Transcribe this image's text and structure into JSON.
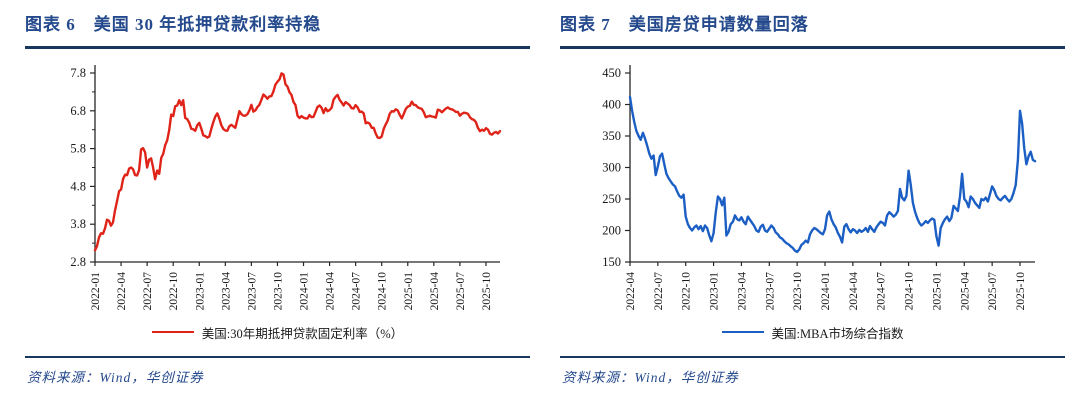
{
  "colors": {
    "title_navy": "#24498c",
    "rule_navy": "#17375e",
    "red_line": "#e02318",
    "blue_line": "#1c5fc4",
    "axis": "#262626"
  },
  "panels": [
    {
      "title": "图表 6　美国 30 年抵押贷款利率持稳",
      "legend": "美国:30年期抵押贷款固定利率（%）",
      "source": "资料来源：Wind，华创证券"
    },
    {
      "title": "图表 7　美国房贷申请数量回落",
      "legend": "美国:MBA市场综合指数",
      "source": "资料来源：Wind，华创证券"
    }
  ],
  "chart_data": [
    {
      "type": "line",
      "title": "美国 30 年抵押贷款利率持稳",
      "xlabel": "",
      "ylabel": "",
      "x_start": "2022-01",
      "frequency": "weekly",
      "ylim": [
        2.8,
        7.8
      ],
      "yticks": [
        2.8,
        3.8,
        4.8,
        5.8,
        6.8,
        7.8
      ],
      "ytick_labels": [
        "2.8",
        "3.8",
        "4.8",
        "5.8",
        "6.8",
        "7.8"
      ],
      "yminor_step": 0.5,
      "xtick_interval_weeks": 13,
      "xtick_labels": [
        "2022-01",
        "2022-04",
        "2022-07",
        "2022-10",
        "2023-01",
        "2023-04",
        "2023-07",
        "2023-10",
        "2024-01",
        "2024-04",
        "2024-07",
        "2024-10",
        "2025-01",
        "2025-04",
        "2025-07",
        "2025-10"
      ],
      "legend_position": "bottom",
      "grid": false,
      "series": [
        {
          "name": "美国:30年期抵押贷款固定利率（%）",
          "color": "#e02318",
          "values": [
            3.11,
            3.22,
            3.45,
            3.56,
            3.55,
            3.69,
            3.92,
            3.89,
            3.76,
            3.85,
            4.16,
            4.42,
            4.67,
            4.72,
            5.0,
            5.11,
            5.1,
            5.27,
            5.3,
            5.25,
            5.1,
            5.09,
            5.23,
            5.78,
            5.81,
            5.7,
            5.3,
            5.51,
            5.54,
            5.3,
            4.99,
            5.22,
            5.13,
            5.55,
            5.66,
            5.89,
            6.02,
            6.29,
            6.7,
            6.66,
            6.92,
            6.94,
            7.08,
            6.95,
            7.08,
            6.61,
            6.58,
            6.49,
            6.33,
            6.31,
            6.27,
            6.42,
            6.48,
            6.33,
            6.15,
            6.13,
            6.09,
            6.12,
            6.32,
            6.5,
            6.65,
            6.73,
            6.6,
            6.42,
            6.32,
            6.28,
            6.27,
            6.39,
            6.43,
            6.39,
            6.35,
            6.57,
            6.79,
            6.71,
            6.67,
            6.67,
            6.71,
            6.81,
            6.96,
            6.78,
            6.81,
            6.9,
            6.96,
            7.09,
            7.23,
            7.18,
            7.12,
            7.18,
            7.19,
            7.31,
            7.49,
            7.57,
            7.63,
            7.79,
            7.76,
            7.5,
            7.44,
            7.29,
            7.22,
            7.03,
            6.95,
            6.67,
            6.61,
            6.66,
            6.62,
            6.6,
            6.6,
            6.69,
            6.63,
            6.64,
            6.77,
            6.9,
            6.94,
            6.88,
            6.74,
            6.87,
            6.79,
            6.82,
            6.88,
            7.1,
            7.17,
            7.22,
            7.09,
            7.02,
            6.94,
            7.03,
            6.99,
            6.95,
            6.87,
            6.86,
            6.95,
            6.89,
            6.77,
            6.78,
            6.73,
            6.47,
            6.49,
            6.46,
            6.35,
            6.35,
            6.2,
            6.09,
            6.08,
            6.12,
            6.32,
            6.44,
            6.54,
            6.72,
            6.79,
            6.78,
            6.84,
            6.81,
            6.69,
            6.6,
            6.72,
            6.85,
            6.91,
            6.93,
            7.04,
            6.96,
            6.95,
            6.89,
            6.87,
            6.85,
            6.76,
            6.63,
            6.65,
            6.67,
            6.65,
            6.64,
            6.62,
            6.83,
            6.81,
            6.76,
            6.81,
            6.86,
            6.89,
            6.85,
            6.84,
            6.81,
            6.77,
            6.77,
            6.67,
            6.72,
            6.75,
            6.74,
            6.72,
            6.63,
            6.58,
            6.56,
            6.5,
            6.35,
            6.26,
            6.3,
            6.27,
            6.34,
            6.3,
            6.19,
            6.17,
            6.22,
            6.24,
            6.2,
            6.26
          ]
        }
      ]
    },
    {
      "type": "line",
      "title": "美国房贷申请数量回落",
      "xlabel": "",
      "ylabel": "",
      "x_start": "2022-04",
      "frequency": "weekly",
      "ylim": [
        150,
        450
      ],
      "yticks": [
        150,
        200,
        250,
        300,
        350,
        400,
        450
      ],
      "ytick_labels": [
        "150",
        "200",
        "250",
        "300",
        "350",
        "400",
        "450"
      ],
      "yminor_step": null,
      "xtick_interval_weeks": 13,
      "xtick_labels": [
        "2022-04",
        "2022-07",
        "2022-10",
        "2023-01",
        "2023-04",
        "2023-07",
        "2023-10",
        "2024-01",
        "2024-04",
        "2024-07",
        "2024-10",
        "2025-01",
        "2025-04",
        "2025-07",
        "2025-10"
      ],
      "legend_position": "bottom",
      "grid": false,
      "series": [
        {
          "name": "美国:MBA市场综合指数",
          "color": "#1c5fc4",
          "values": [
            412,
            390,
            372,
            358,
            350,
            344,
            355,
            346,
            335,
            322,
            314,
            319,
            288,
            302,
            318,
            322,
            305,
            290,
            283,
            278,
            273,
            270,
            262,
            255,
            252,
            257,
            222,
            210,
            204,
            200,
            205,
            208,
            202,
            207,
            199,
            208,
            204,
            192,
            183,
            196,
            228,
            254,
            250,
            240,
            252,
            192,
            198,
            210,
            214,
            224,
            218,
            216,
            221,
            214,
            210,
            222,
            217,
            212,
            207,
            200,
            198,
            206,
            209,
            200,
            198,
            203,
            208,
            204,
            197,
            194,
            189,
            187,
            183,
            180,
            178,
            175,
            172,
            168,
            166,
            170,
            177,
            180,
            184,
            181,
            194,
            200,
            204,
            202,
            199,
            196,
            194,
            202,
            224,
            230,
            218,
            210,
            205,
            196,
            190,
            181,
            206,
            210,
            202,
            197,
            202,
            200,
            196,
            201,
            198,
            200,
            204,
            198,
            207,
            202,
            198,
            205,
            210,
            214,
            212,
            208,
            224,
            229,
            226,
            222,
            225,
            231,
            266,
            252,
            248,
            255,
            295,
            273,
            244,
            230,
            220,
            212,
            208,
            211,
            215,
            212,
            216,
            219,
            217,
            191,
            176,
            204,
            212,
            218,
            222,
            215,
            220,
            239,
            235,
            231,
            254,
            290,
            250,
            246,
            237,
            254,
            250,
            244,
            240,
            236,
            250,
            248,
            252,
            246,
            258,
            270,
            264,
            255,
            250,
            248,
            252,
            255,
            250,
            246,
            250,
            260,
            272,
            312,
            390,
            370,
            330,
            305,
            318,
            325,
            312,
            310
          ]
        }
      ]
    }
  ]
}
